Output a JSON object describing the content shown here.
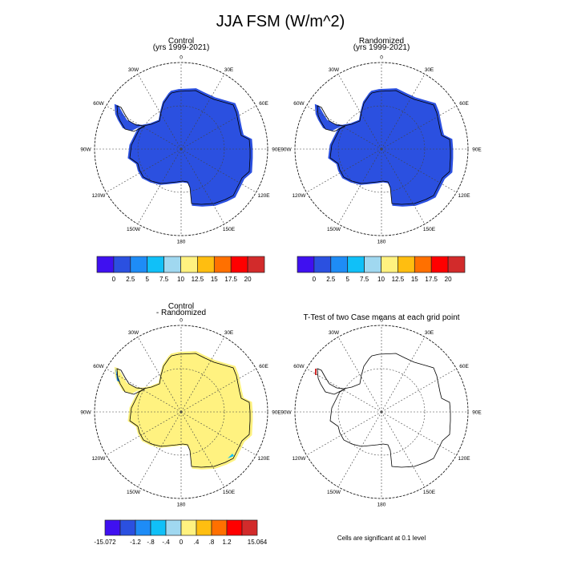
{
  "title": "JJA FSM (W/m^2)",
  "colors": [
    "#3f10f0",
    "#2b50e0",
    "#1e8cf6",
    "#10c0f8",
    "#a0d8f0",
    "#fff280",
    "#ffbe10",
    "#ff7000",
    "#ff0000",
    "#d22b2b"
  ],
  "map_labels": [
    "0",
    "30E",
    "60E",
    "90E",
    "120E",
    "150E",
    "180",
    "150W",
    "120W",
    "90W",
    "60W",
    "30W"
  ],
  "chart_data": [
    {
      "type": "heatmap",
      "projection": "south-polar-stereographic",
      "title": "Control",
      "subtitle": "(yrs 1999-2021)",
      "field_value_range": [
        0,
        2.5
      ],
      "colorbar": {
        "labels": [
          "0",
          "2.5",
          "5",
          "7.5",
          "10",
          "12.5",
          "15",
          "17.5",
          "20"
        ]
      }
    },
    {
      "type": "heatmap",
      "projection": "south-polar-stereographic",
      "title": "Randomized",
      "subtitle": "(yrs 1999-2021)",
      "field_value_range": [
        0,
        2.5
      ],
      "colorbar": {
        "labels": [
          "0",
          "2.5",
          "5",
          "7.5",
          "10",
          "12.5",
          "15",
          "17.5",
          "20"
        ]
      }
    },
    {
      "type": "heatmap",
      "projection": "south-polar-stereographic",
      "title": "Control",
      "subtitle": "- Randomized",
      "field_value_range": [
        0,
        0.4
      ],
      "colorbar": {
        "labels": [
          "-15.072",
          "-1.2",
          "-.8",
          "-.4",
          "0",
          ".4",
          ".8",
          "1.2",
          "15.064"
        ]
      }
    },
    {
      "type": "heatmap",
      "projection": "south-polar-stereographic",
      "title": "T-Test of two Case means at each grid point",
      "note": "Cells are significant at 0.1 level"
    }
  ]
}
